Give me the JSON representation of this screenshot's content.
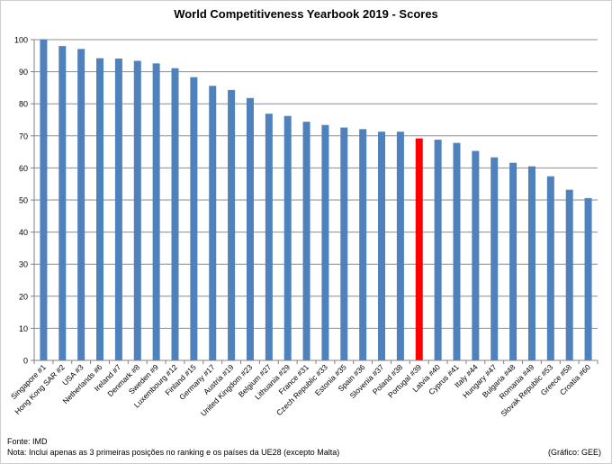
{
  "footer": {
    "source": "Fonte:  IMD",
    "note": "Nota:  Inclui apenas as 3 primeiras posições no ranking e os países da UE28 (excepto  Malta)",
    "credit": "(Gráfico: GEE)"
  },
  "chart_data": {
    "type": "bar",
    "title": "World Competitiveness Yearbook 2019 - Scores",
    "xlabel": "",
    "ylabel": "",
    "ylim": [
      0,
      100
    ],
    "yticks": [
      0,
      10,
      20,
      30,
      40,
      50,
      60,
      70,
      80,
      90,
      100
    ],
    "grid": true,
    "legend": "none",
    "colors": {
      "bar": "#4f81bd",
      "highlight": "#ff0000"
    },
    "highlight_category": "Portugal #39",
    "categories": [
      "Singapore #1",
      "Hong Kong SAR #2",
      "USA #3",
      "Netherlands #6",
      "Ireland #7",
      "Denmark #8",
      "Sweden #9",
      "Luxembourg #12",
      "Finland #15",
      "Germany #17",
      "Austria #19",
      "United Kingdom #23",
      "Belgium #27",
      "Lithuania #29",
      "France #31",
      "Czech Republic #33",
      "Estonia #35",
      "Spain #36",
      "Slovenia #37",
      "Poland #38",
      "Portugal #39",
      "Latvia #40",
      "Cyprus #41",
      "Italy #44",
      "Hungary #47",
      "Bulgaria #48",
      "Romania #49",
      "Slovak Republic #53",
      "Greece #58",
      "Croatia #60"
    ],
    "values": [
      100,
      98,
      97.1,
      94.2,
      94.1,
      93.4,
      92.6,
      91.1,
      88.3,
      85.6,
      84.3,
      81.8,
      76.9,
      76.2,
      74.4,
      73.4,
      72.6,
      72.1,
      71.3,
      71.3,
      69.2,
      68.8,
      67.8,
      65.3,
      63.3,
      61.6,
      60.5,
      57.4,
      53.2,
      50.6
    ]
  }
}
